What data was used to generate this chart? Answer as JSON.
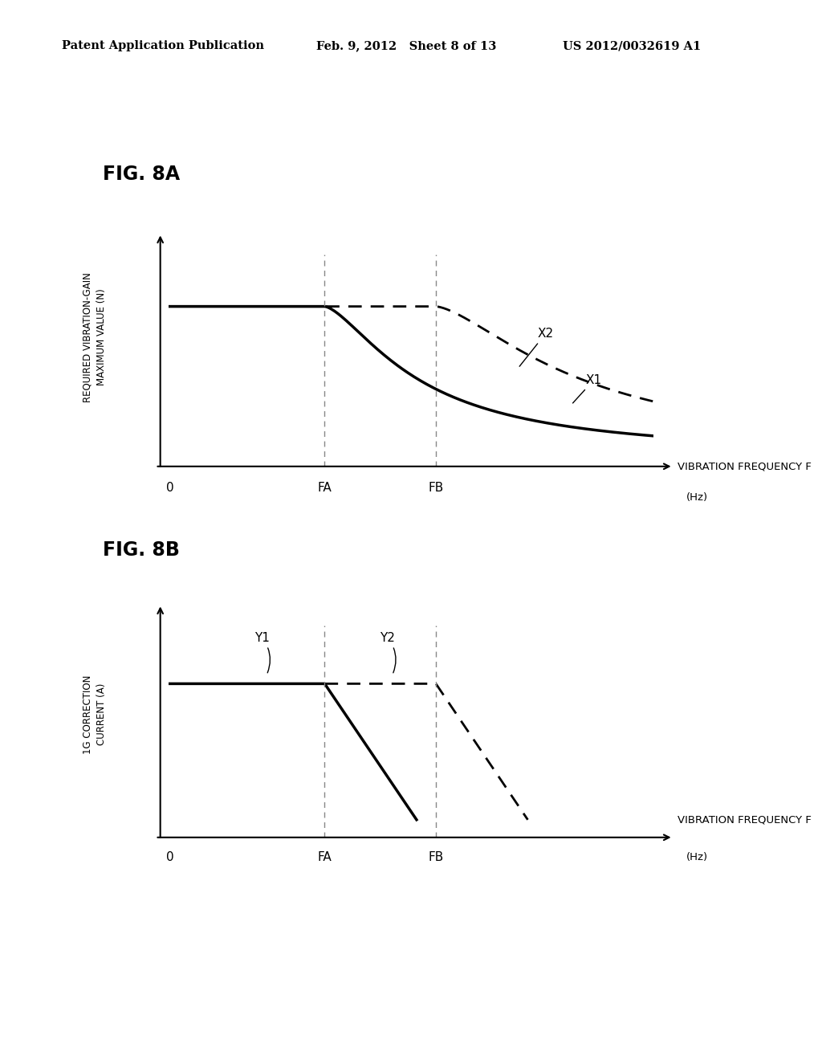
{
  "header_left": "Patent Application Publication",
  "header_mid": "Feb. 9, 2012   Sheet 8 of 13",
  "header_right": "US 2012/0032619 A1",
  "fig8a_title": "FIG. 8A",
  "fig8b_title": "FIG. 8B",
  "ylabel_8a_line1": "REQUIRED VIBRATION-GAIN",
  "ylabel_8a_line2": "MAXIMUM VALUE (N)",
  "ylabel_8b_line1": "1G CORRECTION",
  "ylabel_8b_line2": "CURRENT (A)",
  "xlabel": "VIBRATION FREQUENCY F",
  "xlabel2": "(Hz)",
  "background_color": "#ffffff",
  "line_color": "#000000"
}
